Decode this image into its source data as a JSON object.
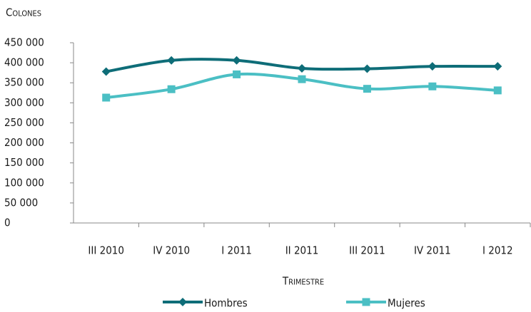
{
  "chart_data": {
    "type": "line",
    "y_label": "Colones",
    "x_label": "Trimestre",
    "categories": [
      "III 2010",
      "IV 2010",
      "I 2011",
      "II 2011",
      "III 2011",
      "IV 2011",
      "I 2012"
    ],
    "series": [
      {
        "name": "Hombres",
        "color": "#0e6d78",
        "marker": "diamond",
        "values": [
          378000,
          406000,
          406000,
          386000,
          385000,
          391000,
          391000
        ]
      },
      {
        "name": "Mujeres",
        "color": "#4bbfc4",
        "marker": "square",
        "values": [
          313000,
          334000,
          371000,
          359000,
          335000,
          341000,
          331000
        ]
      }
    ],
    "ylim": [
      0,
      450000
    ],
    "yticks": [
      0,
      {
        "value": 50000,
        "label": "50 000"
      },
      {
        "value": 100000,
        "label": "100 000"
      },
      {
        "value": 150000,
        "label": "150 000"
      },
      {
        "value": 200000,
        "label": "200 000"
      },
      {
        "value": 250000,
        "label": "250 000"
      },
      {
        "value": 300000,
        "label": "300 000"
      },
      {
        "value": 350000,
        "label": "350 000"
      },
      {
        "value": 400000,
        "label": "400 000"
      },
      {
        "value": 450000,
        "label": "450 000"
      }
    ],
    "grid": false,
    "legend": "bottom"
  }
}
